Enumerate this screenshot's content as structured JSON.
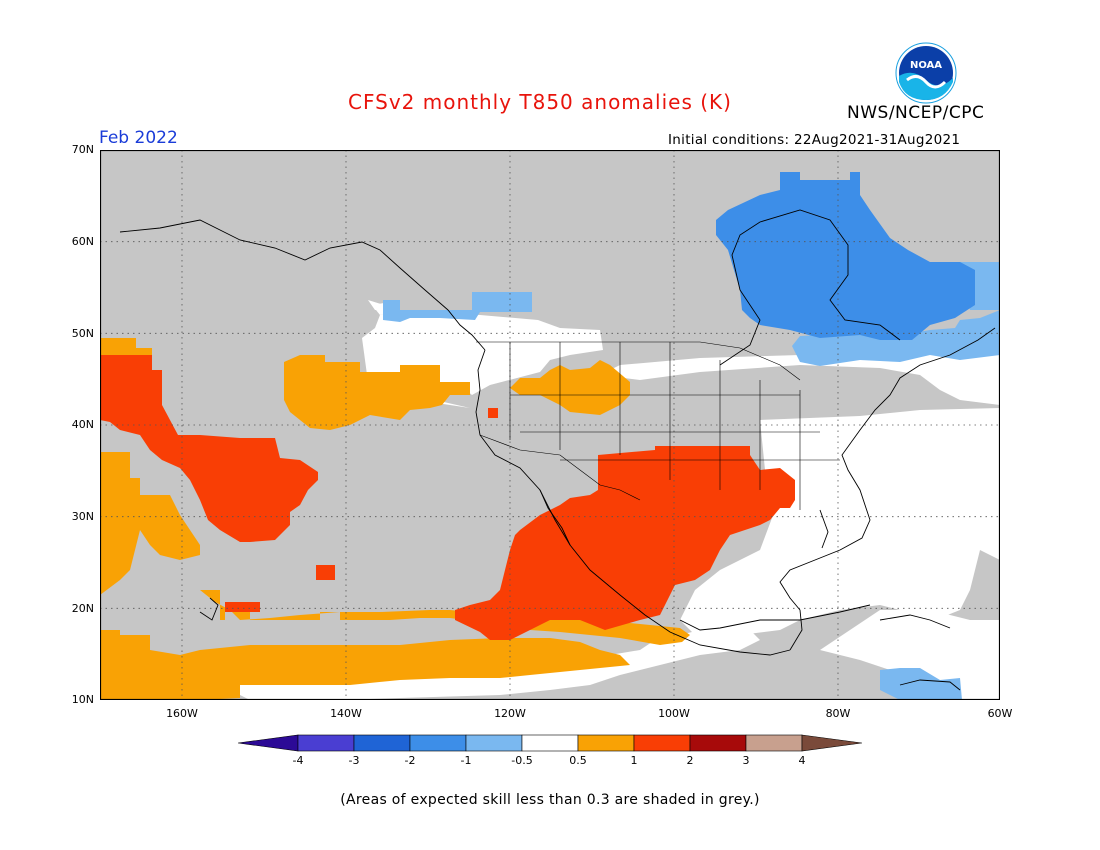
{
  "title": "CFSv2 monthly T850 anomalies (K)",
  "agency": "NWS/NCEP/CPC",
  "logo_text": "NOAA",
  "month": "Feb 2022",
  "initial_conditions": "Initial conditions: 22Aug2021-31Aug2021",
  "map": {
    "lat_labels": [
      "70N",
      "60N",
      "50N",
      "40N",
      "30N",
      "20N",
      "10N"
    ],
    "lon_labels": [
      "160W",
      "140W",
      "120W",
      "100W",
      "80W",
      "60W"
    ],
    "lat_range": [
      10,
      70
    ],
    "lon_range": [
      -170,
      -60
    ],
    "grid": true
  },
  "colorbar": {
    "labels": [
      "-4",
      "-3",
      "-2",
      "-1",
      "-0.5",
      "0.5",
      "1",
      "2",
      "3",
      "4"
    ],
    "colors": [
      "#2c0a96",
      "#4a3ed2",
      "#1f64d6",
      "#3d8ee8",
      "#7ab8f0",
      "#ffffff",
      "#f9a205",
      "#f93e05",
      "#a70a0a",
      "#c8a08e",
      "#7a4a3a"
    ]
  },
  "colors": {
    "grey": "#c6c6c6",
    "white": "#ffffff",
    "orange": "#f9a205",
    "red": "#f93e05",
    "light_blue": "#7ab8f0",
    "mid_blue": "#3d8ee8"
  },
  "note": "(Areas of expected skill less than 0.3 are shaded in grey.)"
}
